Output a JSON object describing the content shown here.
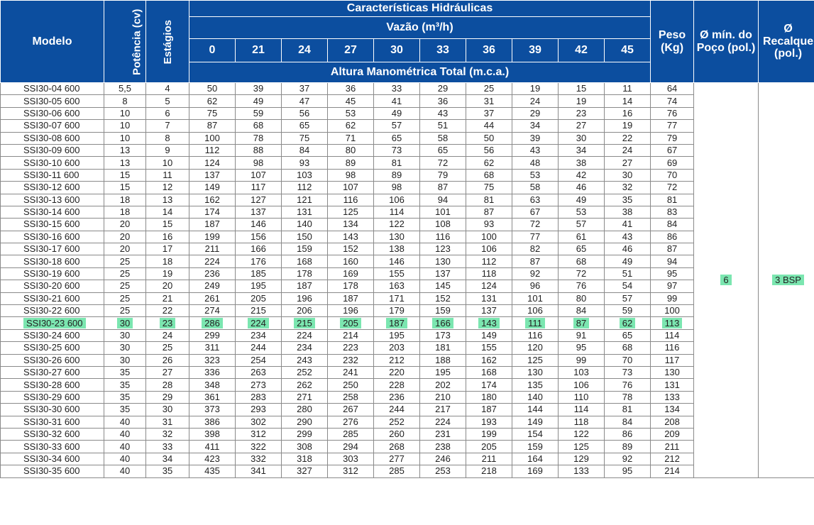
{
  "header": {
    "modelo": "Modelo",
    "potencia": "Potência (cv)",
    "estagios": "Estágios",
    "caracteristicas": "Características Hidráulicas",
    "vazao": "Vazão (m³/h)",
    "flows": [
      "0",
      "21",
      "24",
      "27",
      "30",
      "33",
      "36",
      "39",
      "42",
      "45"
    ],
    "altura": "Altura Manométrica Total (m.c.a.)",
    "peso_line1": "Peso",
    "peso_line2": "(Kg)",
    "poco_line1": "Ø mín. do",
    "poco_line2": "Poço (pol.)",
    "recalque_line1": "Ø",
    "recalque_line2": "Recalque",
    "recalque_line3": "(pol.)"
  },
  "shared": {
    "poco": "6",
    "recalque": "3 BSP"
  },
  "highlight_row": 19,
  "highlight_color": "#7be6b0",
  "header_color": "#0c4e9f",
  "rows": [
    [
      "SSI30-04 600",
      "5,5",
      "4",
      "50",
      "39",
      "37",
      "36",
      "33",
      "29",
      "25",
      "19",
      "15",
      "11",
      "64"
    ],
    [
      "SSI30-05 600",
      "8",
      "5",
      "62",
      "49",
      "47",
      "45",
      "41",
      "36",
      "31",
      "24",
      "19",
      "14",
      "74"
    ],
    [
      "SSI30-06 600",
      "10",
      "6",
      "75",
      "59",
      "56",
      "53",
      "49",
      "43",
      "37",
      "29",
      "23",
      "16",
      "76"
    ],
    [
      "SSI30-07 600",
      "10",
      "7",
      "87",
      "68",
      "65",
      "62",
      "57",
      "51",
      "44",
      "34",
      "27",
      "19",
      "77"
    ],
    [
      "SSI30-08 600",
      "10",
      "8",
      "100",
      "78",
      "75",
      "71",
      "65",
      "58",
      "50",
      "39",
      "30",
      "22",
      "79"
    ],
    [
      "SSI30-09 600",
      "13",
      "9",
      "112",
      "88",
      "84",
      "80",
      "73",
      "65",
      "56",
      "43",
      "34",
      "24",
      "67"
    ],
    [
      "SSI30-10 600",
      "13",
      "10",
      "124",
      "98",
      "93",
      "89",
      "81",
      "72",
      "62",
      "48",
      "38",
      "27",
      "69"
    ],
    [
      "SSI30-11 600",
      "15",
      "11",
      "137",
      "107",
      "103",
      "98",
      "89",
      "79",
      "68",
      "53",
      "42",
      "30",
      "70"
    ],
    [
      "SSI30-12 600",
      "15",
      "12",
      "149",
      "117",
      "112",
      "107",
      "98",
      "87",
      "75",
      "58",
      "46",
      "32",
      "72"
    ],
    [
      "SSI30-13 600",
      "18",
      "13",
      "162",
      "127",
      "121",
      "116",
      "106",
      "94",
      "81",
      "63",
      "49",
      "35",
      "81"
    ],
    [
      "SSI30-14 600",
      "18",
      "14",
      "174",
      "137",
      "131",
      "125",
      "114",
      "101",
      "87",
      "67",
      "53",
      "38",
      "83"
    ],
    [
      "SSI30-15 600",
      "20",
      "15",
      "187",
      "146",
      "140",
      "134",
      "122",
      "108",
      "93",
      "72",
      "57",
      "41",
      "84"
    ],
    [
      "SSI30-16 600",
      "20",
      "16",
      "199",
      "156",
      "150",
      "143",
      "130",
      "116",
      "100",
      "77",
      "61",
      "43",
      "86"
    ],
    [
      "SSI30-17 600",
      "20",
      "17",
      "211",
      "166",
      "159",
      "152",
      "138",
      "123",
      "106",
      "82",
      "65",
      "46",
      "87"
    ],
    [
      "SSI30-18 600",
      "25",
      "18",
      "224",
      "176",
      "168",
      "160",
      "146",
      "130",
      "112",
      "87",
      "68",
      "49",
      "94"
    ],
    [
      "SSI30-19 600",
      "25",
      "19",
      "236",
      "185",
      "178",
      "169",
      "155",
      "137",
      "118",
      "92",
      "72",
      "51",
      "95"
    ],
    [
      "SSI30-20 600",
      "25",
      "20",
      "249",
      "195",
      "187",
      "178",
      "163",
      "145",
      "124",
      "96",
      "76",
      "54",
      "97"
    ],
    [
      "SSI30-21 600",
      "25",
      "21",
      "261",
      "205",
      "196",
      "187",
      "171",
      "152",
      "131",
      "101",
      "80",
      "57",
      "99"
    ],
    [
      "SSI30-22 600",
      "25",
      "22",
      "274",
      "215",
      "206",
      "196",
      "179",
      "159",
      "137",
      "106",
      "84",
      "59",
      "100"
    ],
    [
      "SSI30-23 600",
      "30",
      "23",
      "286",
      "224",
      "215",
      "205",
      "187",
      "166",
      "143",
      "111",
      "87",
      "62",
      "113"
    ],
    [
      "SSI30-24 600",
      "30",
      "24",
      "299",
      "234",
      "224",
      "214",
      "195",
      "173",
      "149",
      "116",
      "91",
      "65",
      "114"
    ],
    [
      "SSI30-25 600",
      "30",
      "25",
      "311",
      "244",
      "234",
      "223",
      "203",
      "181",
      "155",
      "120",
      "95",
      "68",
      "116"
    ],
    [
      "SSI30-26 600",
      "30",
      "26",
      "323",
      "254",
      "243",
      "232",
      "212",
      "188",
      "162",
      "125",
      "99",
      "70",
      "117"
    ],
    [
      "SSI30-27 600",
      "35",
      "27",
      "336",
      "263",
      "252",
      "241",
      "220",
      "195",
      "168",
      "130",
      "103",
      "73",
      "130"
    ],
    [
      "SSI30-28 600",
      "35",
      "28",
      "348",
      "273",
      "262",
      "250",
      "228",
      "202",
      "174",
      "135",
      "106",
      "76",
      "131"
    ],
    [
      "SSI30-29 600",
      "35",
      "29",
      "361",
      "283",
      "271",
      "258",
      "236",
      "210",
      "180",
      "140",
      "110",
      "78",
      "133"
    ],
    [
      "SSI30-30 600",
      "35",
      "30",
      "373",
      "293",
      "280",
      "267",
      "244",
      "217",
      "187",
      "144",
      "114",
      "81",
      "134"
    ],
    [
      "SSI30-31 600",
      "40",
      "31",
      "386",
      "302",
      "290",
      "276",
      "252",
      "224",
      "193",
      "149",
      "118",
      "84",
      "208"
    ],
    [
      "SSI30-32 600",
      "40",
      "32",
      "398",
      "312",
      "299",
      "285",
      "260",
      "231",
      "199",
      "154",
      "122",
      "86",
      "209"
    ],
    [
      "SSI30-33 600",
      "40",
      "33",
      "411",
      "322",
      "308",
      "294",
      "268",
      "238",
      "205",
      "159",
      "125",
      "89",
      "211"
    ],
    [
      "SSI30-34 600",
      "40",
      "34",
      "423",
      "332",
      "318",
      "303",
      "277",
      "246",
      "211",
      "164",
      "129",
      "92",
      "212"
    ],
    [
      "SSI30-35 600",
      "40",
      "35",
      "435",
      "341",
      "327",
      "312",
      "285",
      "253",
      "218",
      "169",
      "133",
      "95",
      "214"
    ]
  ]
}
